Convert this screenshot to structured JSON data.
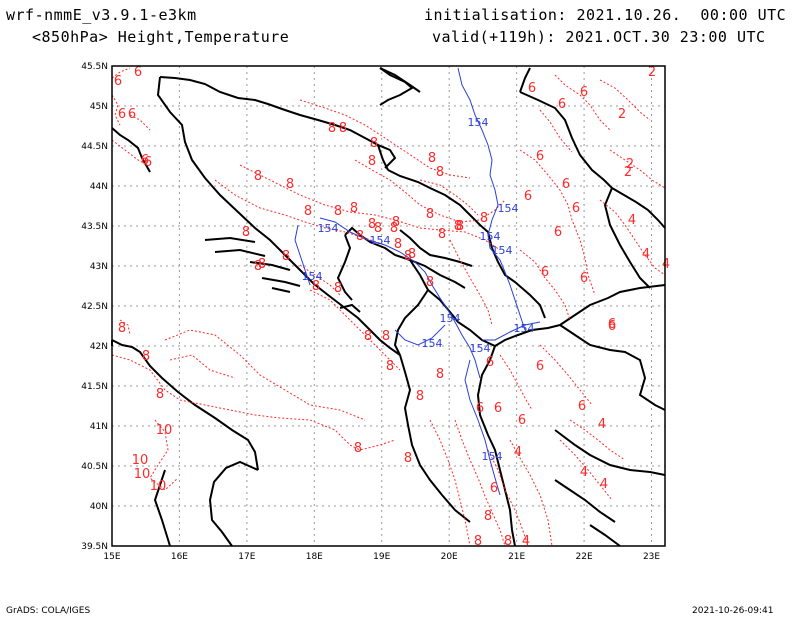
{
  "header": {
    "model": "wrf-nmmE_v3.9.1-e3km",
    "field": "<850hPa> Height,Temperature",
    "init": "initialisation: 2021.10.26.  00:00 UTC",
    "valid": "valid(+119h): 2021.OCT.30 23:00 UTC"
  },
  "footer": {
    "credit": "GrADS: COLA/IGES",
    "timestamp": "2021-10-26-09:41"
  },
  "axes": {
    "lon_labels": [
      "15E",
      "16E",
      "17E",
      "18E",
      "19E",
      "20E",
      "21E",
      "22E",
      "23E"
    ],
    "lat_labels": [
      "45.5N",
      "45N",
      "44.5N",
      "44N",
      "43.5N",
      "43N",
      "42.5N",
      "42N",
      "41.5N",
      "41N",
      "40.5N",
      "40N",
      "39.5N"
    ]
  },
  "colors": {
    "temperature": "#ff2a2a",
    "height": "#2a3fd6",
    "coast": "#000000",
    "grid": "#9a9a9a"
  },
  "height_labels": [
    "154",
    "154",
    "154",
    "154",
    "154",
    "154",
    "154",
    "154",
    "154",
    "154",
    "154",
    "154"
  ],
  "temp_labels": [
    "6",
    "6",
    "6",
    "6",
    "6",
    "8",
    "8",
    "8",
    "8",
    "8",
    "8",
    "8",
    "8",
    "8",
    "8",
    "8",
    "8",
    "8",
    "8",
    "8",
    "8",
    "8",
    "8",
    "8",
    "8",
    "8",
    "8",
    "8",
    "8",
    "8",
    "8",
    "8",
    "8",
    "8",
    "8",
    "8",
    "8",
    "8",
    "8",
    "8",
    "8",
    "8",
    "8",
    "8",
    "8",
    "8",
    "6",
    "6",
    "6",
    "6",
    "6",
    "6",
    "6",
    "6",
    "6",
    "6",
    "6",
    "6",
    "6",
    "6",
    "6",
    "6",
    "6",
    "6",
    "6",
    "6",
    "2",
    "2",
    "2",
    "2",
    "4",
    "4",
    "4",
    "4",
    "4",
    "4",
    "4",
    "4",
    "10",
    "10",
    "10",
    "10",
    "8",
    "8",
    "8"
  ]
}
